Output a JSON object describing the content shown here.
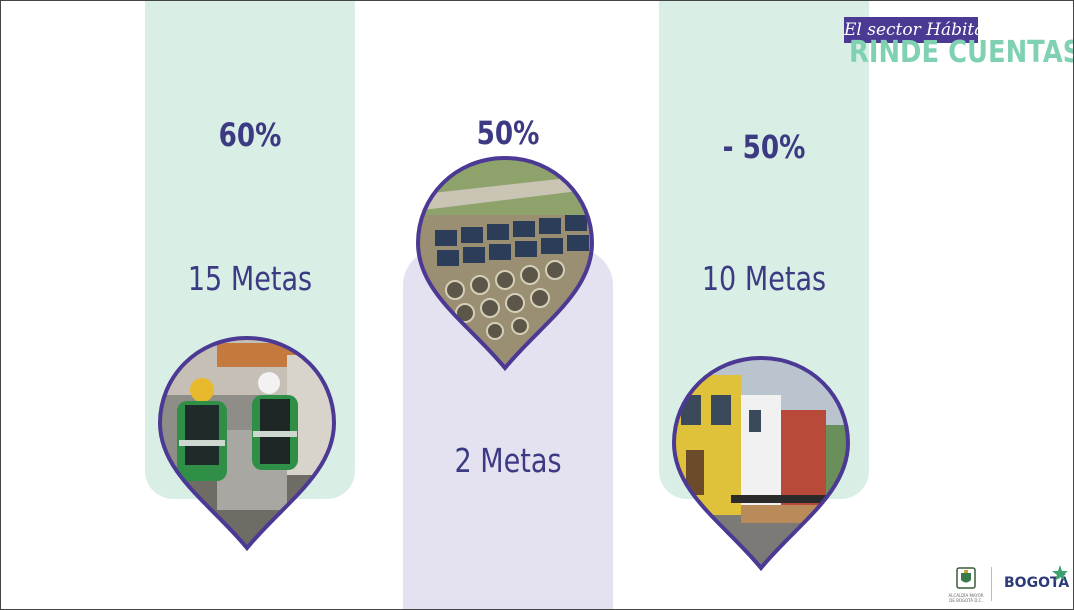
{
  "brand": {
    "tagline": "El sector Hábitat",
    "title": "RINDE CUENTAS",
    "accent": "#7fd1b2",
    "tag_bg": "#4b3994"
  },
  "columns": [
    {
      "percent": "60%",
      "metas": "15 Metas",
      "image": "recyclers-icon"
    },
    {
      "percent": "50%",
      "metas": "2 Metas",
      "image": "water-treatment-plant-icon"
    },
    {
      "percent": "- 50%",
      "metas": "10 Metas",
      "image": "colonial-street-icon"
    }
  ],
  "colors": {
    "text": "#3d3a84",
    "mint": "#d9efe6",
    "lavender": "#e4e2f0",
    "pin_border": "#4b3994"
  },
  "footer": {
    "logo_text": "BOGOTÁ",
    "subtext": "ALCALDÍA MAYOR DE BOGOTÁ D.C."
  }
}
